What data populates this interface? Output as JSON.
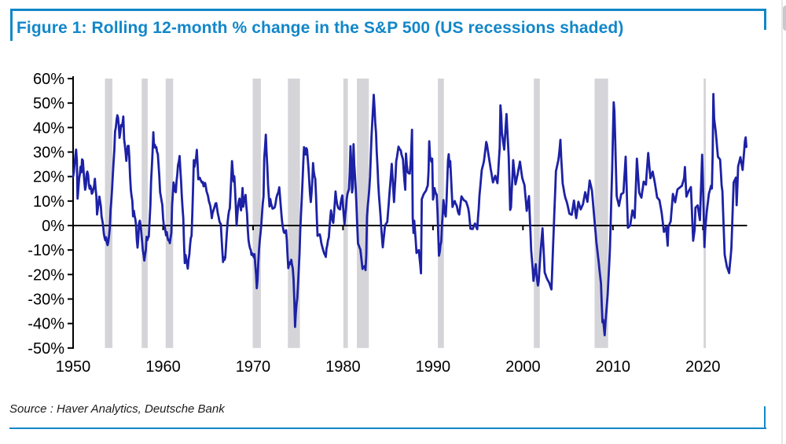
{
  "figure": {
    "title": "Figure 1: Rolling 12-month % change in the S&P 500 (US recessions shaded)",
    "source": "Source : Haver Analytics, Deutsche Bank",
    "accent_color": "#1287c9"
  },
  "chart_data": {
    "type": "line",
    "title": "Figure 1: Rolling 12-month % change in the S&P 500 (US recessions shaded)",
    "xlabel": "",
    "ylabel": "",
    "ylim": [
      -50,
      60
    ],
    "xlim_years": [
      1949.8,
      2025.6
    ],
    "grid": false,
    "legend": "none",
    "line_color": "#1c21a5",
    "zero_line_color": "#000000",
    "recession_band_color": "#d4d4d9",
    "y_ticks": [
      60,
      50,
      40,
      30,
      20,
      10,
      0,
      -10,
      -20,
      -30,
      -40,
      -50
    ],
    "y_tick_labels": [
      "60%",
      "50%",
      "40%",
      "30%",
      "20%",
      "10%",
      "0%",
      "-10%",
      "-20%",
      "-30%",
      "-40%",
      "-50%"
    ],
    "x_tick_years": [
      1950,
      1960,
      1970,
      1980,
      1990,
      2000,
      2010,
      2020
    ],
    "x_tick_labels": [
      "1950",
      "1960",
      "1970",
      "1980",
      "1990",
      "2000",
      "2010",
      "2020"
    ],
    "recessions_shaded_years": [
      [
        1953.54,
        1954.37
      ],
      [
        1957.62,
        1958.29
      ],
      [
        1960.29,
        1961.12
      ],
      [
        1969.96,
        1970.87
      ],
      [
        1973.87,
        1975.21
      ],
      [
        1980.04,
        1980.54
      ],
      [
        1981.54,
        1982.87
      ],
      [
        1990.54,
        1991.21
      ],
      [
        2001.21,
        2001.87
      ],
      [
        2007.96,
        2009.46
      ],
      [
        2020.08,
        2020.33
      ]
    ],
    "series": [
      {
        "name": "S&P 500 rolling 12-month % change",
        "start_year": 1950,
        "frequency": "monthly",
        "values": [
          20,
          22,
          25,
          28.5,
          31,
          26.6,
          11,
          15,
          19,
          21,
          24,
          21.7,
          27,
          26.6,
          22,
          18,
          14.6,
          16,
          21,
          22,
          20.7,
          17,
          15,
          16.3,
          15,
          13,
          13.5,
          15,
          16,
          19.1,
          15,
          12,
          4.5,
          7,
          9,
          11.8,
          10,
          8,
          3.8,
          2,
          0,
          -3.3,
          -5,
          -6,
          -4.8,
          -7,
          -8,
          -6.6,
          -4,
          -1,
          6.5,
          10,
          15,
          21,
          26,
          31,
          38.4,
          40,
          43,
          45,
          44,
          40.6,
          35.8,
          38,
          41,
          40.5,
          42,
          44.5,
          35.2,
          33,
          30,
          26.4,
          30,
          32.5,
          32.5,
          28,
          20,
          14.5,
          12,
          10,
          3.8,
          6,
          4,
          2.6,
          0,
          -6,
          -9,
          -5,
          0.9,
          2,
          0,
          -3,
          -6.5,
          -10,
          -12,
          -14.3,
          -12,
          -10,
          -4.6,
          -6,
          -5,
          -4.5,
          2,
          8,
          18,
          24,
          30,
          38.1,
          32,
          33,
          31.7,
          32,
          30,
          29.2,
          25,
          20,
          13.6,
          12,
          10,
          8.5,
          3,
          0,
          -0.2,
          -2,
          -4,
          -2.7,
          -5,
          -6,
          -5.9,
          -7.2,
          -5,
          -3,
          8,
          13,
          17.6,
          16,
          14,
          13.6,
          18,
          21,
          24.7,
          26,
          28.4,
          23.1,
          18,
          12,
          6.9,
          3,
          -8,
          -15.3,
          -12,
          -14,
          -15.7,
          -17.6,
          -14,
          -11.8,
          -8,
          -5,
          -4.3,
          5,
          15,
          26.7,
          24,
          26,
          27.4,
          30.9,
          25,
          18.9,
          19,
          19.5,
          18.6,
          18,
          17.5,
          17.8,
          16,
          17,
          17.4,
          16,
          14,
          13,
          12,
          10,
          9.1,
          8,
          6,
          3,
          5,
          6,
          6.9,
          8,
          9,
          9.1,
          7,
          5,
          3.6,
          2,
          1,
          0.7,
          -5,
          -10,
          -14.9,
          -13,
          -14,
          -13.1,
          -8,
          -3,
          1.1,
          4,
          6,
          7,
          13,
          20,
          26.3,
          22,
          18,
          20.1,
          15,
          8,
          0,
          4,
          8,
          9.9,
          11,
          8,
          6.2,
          10,
          15.3,
          7.7,
          10,
          11,
          12.5,
          8,
          4.8,
          -1.9,
          -6,
          -8,
          -9.3,
          -10,
          -12,
          -11.4,
          -12,
          -13,
          -11.7,
          -16,
          -20,
          -25.6,
          -22,
          -15,
          -9.6,
          -6,
          -3,
          0.1,
          5,
          9,
          11.9,
          27.5,
          32,
          37.1,
          30,
          24,
          16.8,
          12,
          7.8,
          10.8,
          9,
          8,
          6.9,
          7,
          7.2,
          7.5,
          9,
          11,
          12.4,
          13,
          14,
          15.6,
          11.6,
          8,
          4,
          1,
          -1,
          -2.7,
          -3,
          -2.5,
          -1.9,
          -6,
          -12,
          -17.4,
          -16,
          -15,
          -15.7,
          -14,
          -16,
          -17.5,
          -22,
          -30,
          -41.4,
          -36,
          -32,
          -29.7,
          -24,
          -18,
          -11.3,
          -2,
          5,
          10.7,
          18,
          26,
          32,
          30,
          29,
          31.6,
          31,
          27,
          23.3,
          18,
          13,
          9.6,
          13,
          18,
          25.5,
          22,
          20,
          19.1,
          12,
          4,
          -4.2,
          -4,
          -3.8,
          -3.6,
          -5,
          -7,
          -8.3,
          -9.5,
          -10.5,
          -11.5,
          -12,
          -12.8,
          -9.4,
          -8,
          -6,
          -4.9,
          -1,
          3,
          6.2,
          4,
          2,
          1.1,
          5,
          9,
          13.9,
          11,
          9,
          7.7,
          7,
          6.8,
          6.6,
          9.3,
          11,
          12.3,
          8,
          4,
          0.5,
          4.5,
          7,
          11,
          13,
          14,
          14.8,
          22,
          32.4,
          25.8,
          13.5,
          15.5,
          33.2,
          25,
          20,
          14.9,
          7.6,
          0,
          -7.4,
          -8,
          -9,
          -9.7,
          -12,
          -15,
          -17.7,
          -17,
          -16.8,
          -16.5,
          -18.2,
          -12,
          3.6,
          8,
          11,
          14.8,
          20,
          28,
          36.6,
          42,
          48,
          53.4,
          48,
          42,
          37.9,
          30,
          24,
          17.3,
          12,
          8,
          4.1,
          -1,
          -5,
          -8.9,
          -6,
          -3,
          0,
          0.5,
          1,
          1.4,
          5,
          9,
          13.5,
          17,
          21,
          25.2,
          20,
          15,
          9.6,
          15,
          20,
          26.3,
          28,
          30,
          32.2,
          31.5,
          31,
          30.7,
          29,
          28,
          27,
          22,
          18,
          14.6,
          29.4,
          25,
          22.1,
          21.5,
          21.3,
          21.2,
          25,
          30.4,
          39.1,
          3.2,
          -3,
          2,
          -2,
          -6,
          -11.2,
          -10.8,
          -10.4,
          -10,
          -13,
          -16,
          -19.5,
          10.8,
          11.5,
          12.4,
          13,
          13.5,
          13.9,
          14.5,
          15.5,
          16.3,
          22,
          34.4,
          28.4,
          27,
          26,
          27.3,
          10.6,
          12,
          15.3,
          14,
          13,
          12.6,
          6,
          -4,
          -12.3,
          -10.7,
          -8,
          -6.6,
          0,
          5,
          10.4,
          7,
          5,
          3.7,
          10,
          18,
          26.7,
          29.1,
          24,
          26.3,
          20,
          14,
          7.6,
          8.5,
          9.3,
          10,
          9,
          8.5,
          7.7,
          6,
          5,
          4.5,
          7,
          9.5,
          11.9,
          11.4,
          10.9,
          10.4,
          10.2,
          10,
          9.8,
          9,
          8,
          7.1,
          5,
          2,
          -1.3,
          -1.3,
          -1.4,
          -1.4,
          -0.5,
          0.2,
          0.8,
          0,
          -0.8,
          -1.5,
          3,
          7,
          12.3,
          15.7,
          19,
          22.6,
          23.8,
          25,
          26.3,
          28.9,
          31.5,
          34.1,
          33,
          31,
          28.9,
          27,
          25,
          23.1,
          21.3,
          19.4,
          17.6,
          18.5,
          19.4,
          20.3,
          19.3,
          18.3,
          17.3,
          22,
          27,
          32,
          49.1,
          45,
          37.8,
          35.5,
          33.2,
          31,
          36,
          40.7,
          45.5,
          39.7,
          33.9,
          28.1,
          17,
          6.4,
          7.4,
          14,
          20,
          26.7,
          23.4,
          20,
          16.8,
          18.2,
          19.7,
          21.1,
          22.8,
          24.4,
          26.1,
          23.9,
          21.7,
          19.5,
          18.5,
          17.5,
          16.5,
          13,
          9.5,
          6,
          8,
          10,
          12,
          4.6,
          -2.7,
          -10.1,
          -14,
          -18,
          -22.6,
          -20.3,
          -18,
          -15.8,
          -19.7,
          -22.5,
          -24.5,
          -22.6,
          -17.8,
          -13,
          -9,
          -5,
          -1.1,
          -7.1,
          -13.2,
          -19.2,
          -20,
          -20.9,
          -21.7,
          -22.3,
          -22.8,
          -23.4,
          -24.3,
          -25.2,
          -26.1,
          -17.9,
          -9.7,
          -1.5,
          6.4,
          14.3,
          22.2,
          23.6,
          25,
          26.4,
          28.5,
          31.7,
          35,
          27.6,
          22.3,
          17.1,
          15.4,
          13.6,
          11.9,
          10.9,
          10,
          9,
          7.6,
          6.2,
          4.8,
          4.7,
          4.5,
          4.4,
          6.3,
          8.3,
          10.2,
          7.8,
          5.4,
          3,
          5.2,
          7.5,
          9.7,
          8.7,
          7.6,
          6.6,
          7.3,
          8,
          8.7,
          10.3,
          12,
          13.6,
          12.3,
          11,
          9.7,
          12.6,
          15.5,
          18.4,
          17,
          15.7,
          14.3,
          10.7,
          7.1,
          3.5,
          0,
          -3.4,
          -6.9,
          -9.6,
          -12.2,
          -14.9,
          -17.8,
          -20.7,
          -23.6,
          -31.5,
          -39.5,
          -38.5,
          -41.7,
          -44.8,
          -39.7,
          -35.9,
          -32,
          -28.2,
          -21.9,
          -15.7,
          -9.4,
          1.6,
          12.5,
          23.5,
          36.9,
          50.3,
          46.6,
          35.1,
          23.6,
          12.1,
          10.7,
          9.4,
          8,
          9.6,
          11.2,
          12.8,
          13,
          13.2,
          13.4,
          18.3,
          23.2,
          28.1,
          18.4,
          8.7,
          -0.9,
          -0.6,
          -0.3,
          0,
          2.1,
          4.2,
          6.2,
          5.2,
          4.1,
          3.1,
          11.2,
          19.2,
          27.3,
          22.7,
          18,
          13.4,
          12.7,
          12,
          11.4,
          13.6,
          15.7,
          17.9,
          17.5,
          17.1,
          16.7,
          21,
          25.3,
          29.6,
          26.2,
          22.7,
          19.3,
          20.2,
          21.1,
          22,
          20.4,
          18.9,
          17.3,
          15.3,
          13.4,
          11.4,
          11.1,
          10.7,
          10.4,
          8.7,
          6.9,
          5.2,
          2.6,
          0,
          -2.6,
          -2,
          -1.3,
          -0.7,
          -4.5,
          -8.2,
          -0.4,
          0.3,
          1,
          1.7,
          5.4,
          9.2,
          12.9,
          11.8,
          10.6,
          9.5,
          11.2,
          13,
          14.7,
          15,
          15.2,
          15.5,
          15.7,
          16,
          16.2,
          17.3,
          18.3,
          19.4,
          23.9,
          17.9,
          11.8,
          12.6,
          13.3,
          14.1,
          14.6,
          15.2,
          15.7,
          8.4,
          1.1,
          -6.2,
          -4,
          -1.7,
          7.3,
          7.6,
          7.9,
          8.2,
          6.2,
          4.2,
          2.2,
          11.1,
          20,
          28.9,
          17.5,
          6.1,
          -8.8,
          -2,
          1.7,
          5.4,
          7.9,
          10.5,
          13,
          14.1,
          15.2,
          16.3,
          15.1,
          29,
          53.7,
          43.6,
          41,
          38.6,
          35.1,
          31.6,
          28.1,
          27.7,
          27.3,
          26.9,
          21.6,
          16.4,
          14,
          5.4,
          -3.3,
          -11.9,
          -13.5,
          -15.2,
          -16.8,
          -17.7,
          -18.5,
          -19.4,
          -16,
          -12.7,
          -9.3,
          -0.3,
          8.6,
          17.6,
          18.3,
          18.9,
          19.6,
          8.3,
          16.2,
          24.2,
          25.4,
          26.6,
          27.9,
          26.2,
          24.4,
          22.7,
          26.6,
          30.5,
          34.4,
          36,
          32.1
        ]
      }
    ]
  }
}
